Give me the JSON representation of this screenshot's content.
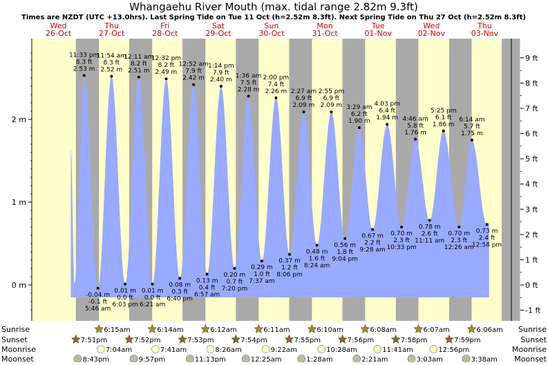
{
  "chart_data": {
    "type": "area",
    "title": "Whangaehu River Mouth (max. tidal range 2.82m 9.3ft)",
    "subtitle": "Times are NZDT (UTC +13.0hrs). Last Spring Tide on Tue 11 Oct (h=2.52m 8.3ft). Next Spring Tide on Thu 27 Oct (h=2.52m 8.3ft)",
    "days": [
      {
        "name": "Wed",
        "date": "26-Oct"
      },
      {
        "name": "Thu",
        "date": "27-Oct"
      },
      {
        "name": "Fri",
        "date": "28-Oct"
      },
      {
        "name": "Sat",
        "date": "29-Oct"
      },
      {
        "name": "Sun",
        "date": "30-Oct"
      },
      {
        "name": "Mon",
        "date": "31-Oct"
      },
      {
        "name": "Tue",
        "date": "01-Nov"
      },
      {
        "name": "Wed",
        "date": "02-Nov"
      },
      {
        "name": "Thu",
        "date": "03-Nov"
      }
    ],
    "y_left_ticks": [
      "0 m",
      "1 m",
      "2 m"
    ],
    "y_right_ticks": [
      "-1 ft",
      "0 ft",
      "1 ft",
      "2 ft",
      "3 ft",
      "4 ft",
      "5 ft",
      "6 ft",
      "7 ft",
      "8 ft",
      "9 ft"
    ],
    "ylim_m": [
      -0.3,
      2.85
    ],
    "tides": [
      {
        "type": "high",
        "time": "11:33 pm",
        "ft": "8.3 ft",
        "m": "2.53 m",
        "h": 2.53,
        "t": 23.55
      },
      {
        "type": "low",
        "time": "5:46 am",
        "ft": "-0.1 ft",
        "m": "-0.04 m",
        "h": -0.04,
        "t": 29.77
      },
      {
        "type": "high",
        "time": "11:54 am",
        "ft": "8.3 ft",
        "m": "2.52 m",
        "h": 2.52,
        "t": 35.9
      },
      {
        "type": "low",
        "time": "6:03 pm",
        "ft": "0.0 ft",
        "m": "0.01 m",
        "h": 0.01,
        "t": 42.05
      },
      {
        "type": "high",
        "time": "12:11 am",
        "ft": "8.2 ft",
        "m": "2.51 m",
        "h": 2.51,
        "t": 48.18
      },
      {
        "type": "low",
        "time": "6:21 am",
        "ft": "0.0 ft",
        "m": "0.01 m",
        "h": 0.01,
        "t": 54.35
      },
      {
        "type": "high",
        "time": "12:32 pm",
        "ft": "8.2 ft",
        "m": "2.49 m",
        "h": 2.49,
        "t": 60.53
      },
      {
        "type": "low",
        "time": "6:40 pm",
        "ft": "0.3 ft",
        "m": "0.08 m",
        "h": 0.08,
        "t": 66.67
      },
      {
        "type": "high",
        "time": "12:52 am",
        "ft": "7.9 ft",
        "m": "2.42 m",
        "h": 2.42,
        "t": 72.87
      },
      {
        "type": "low",
        "time": "6:57 am",
        "ft": "0.4 ft",
        "m": "0.13 m",
        "h": 0.13,
        "t": 78.95
      },
      {
        "type": "high",
        "time": "1:14 pm",
        "ft": "7.9 ft",
        "m": "2.40 m",
        "h": 2.4,
        "t": 85.23
      },
      {
        "type": "low",
        "time": "7:20 pm",
        "ft": "0.7 ft",
        "m": "0.20 m",
        "h": 0.2,
        "t": 91.33
      },
      {
        "type": "high",
        "time": "1:36 am",
        "ft": "7.5 ft",
        "m": "2.28 m",
        "h": 2.28,
        "t": 97.6
      },
      {
        "type": "low",
        "time": "7:37 am",
        "ft": "1.0 ft",
        "m": "0.29 m",
        "h": 0.29,
        "t": 103.62
      },
      {
        "type": "high",
        "time": "2:00 pm",
        "ft": "7.4 ft",
        "m": "2.26 m",
        "h": 2.26,
        "t": 110.0
      },
      {
        "type": "low",
        "time": "8:06 pm",
        "ft": "1.2 ft",
        "m": "0.37 m",
        "h": 0.37,
        "t": 116.1
      },
      {
        "type": "high",
        "time": "2:27 am",
        "ft": "6.9 ft",
        "m": "2.09 m",
        "h": 2.09,
        "t": 122.45
      },
      {
        "type": "low",
        "time": "8:24 am",
        "ft": "1.6 ft",
        "m": "0.48 m",
        "h": 0.48,
        "t": 128.4
      },
      {
        "type": "high",
        "time": "2:55 pm",
        "ft": "6.9 ft",
        "m": "2.09 m",
        "h": 2.09,
        "t": 134.92
      },
      {
        "type": "low",
        "time": "9:04 pm",
        "ft": "1.8 ft",
        "m": "0.56 m",
        "h": 0.56,
        "t": 141.07
      },
      {
        "type": "high",
        "time": "3:29 am",
        "ft": "6.2 ft",
        "m": "1.90 m",
        "h": 1.9,
        "t": 147.48
      },
      {
        "type": "low",
        "time": "9:28 am",
        "ft": "2.2 ft",
        "m": "0.67 m",
        "h": 0.67,
        "t": 153.47
      },
      {
        "type": "high",
        "time": "4:03 pm",
        "ft": "6.4 ft",
        "m": "1.94 m",
        "h": 1.94,
        "t": 160.05
      },
      {
        "type": "low",
        "time": "10:33 pm",
        "ft": "2.3 ft",
        "m": "0.70 m",
        "h": 0.7,
        "t": 166.55
      },
      {
        "type": "high",
        "time": "4:46 am",
        "ft": "5.8 ft",
        "m": "1.76 m",
        "h": 1.76,
        "t": 172.77
      },
      {
        "type": "low",
        "time": "11:11 am",
        "ft": "2.6 ft",
        "m": "0.78 m",
        "h": 0.78,
        "t": 179.18
      },
      {
        "type": "high",
        "time": "5:25 pm",
        "ft": "6.1 ft",
        "m": "1.86 m",
        "h": 1.86,
        "t": 185.42
      },
      {
        "type": "low",
        "time": "12:26 am",
        "ft": "2.3 ft",
        "m": "0.70 m",
        "h": 0.7,
        "t": 192.43
      },
      {
        "type": "high",
        "time": "6:14 am",
        "ft": "5.7 ft",
        "m": "1.75 m",
        "h": 1.75,
        "t": 198.23
      },
      {
        "type": "low",
        "time": "12:58 pm",
        "ft": "2.4 ft",
        "m": "0.73 m",
        "h": 0.73,
        "t": 204.97
      }
    ],
    "sun": [
      {
        "sunset": "7:51pm",
        "sunset_t": 19.85
      },
      {
        "sunrise": "6:15am",
        "sunrise_t": 30.25,
        "sunset": "7:52pm",
        "sunset_t": 43.87
      },
      {
        "sunrise": "6:14am",
        "sunrise_t": 54.23,
        "sunset": "7:53pm",
        "sunset_t": 67.88
      },
      {
        "sunrise": "6:12am",
        "sunrise_t": 78.2,
        "sunset": "7:54pm",
        "sunset_t": 91.9
      },
      {
        "sunrise": "6:11am",
        "sunrise_t": 102.18,
        "sunset": "7:55pm",
        "sunset_t": 115.92
      },
      {
        "sunrise": "6:10am",
        "sunrise_t": 126.17,
        "sunset": "7:56pm",
        "sunset_t": 139.93
      },
      {
        "sunrise": "6:08am",
        "sunrise_t": 150.13,
        "sunset": "7:58pm",
        "sunset_t": 163.97
      },
      {
        "sunrise": "6:07am",
        "sunrise_t": 174.12,
        "sunset": "7:59pm",
        "sunset_t": 187.98
      },
      {
        "sunrise": "6:06am",
        "sunrise_t": 198.1
      }
    ],
    "moonrise": [
      {
        "time": "7:04am",
        "t": 31.07
      },
      {
        "time": "7:41am",
        "t": 55.68
      },
      {
        "time": "8:26am",
        "t": 80.43
      },
      {
        "time": "9:22am",
        "t": 105.37
      },
      {
        "time": "10:28am",
        "t": 130.47
      },
      {
        "time": "11:41am",
        "t": 155.68
      },
      {
        "time": "12:56pm",
        "t": 180.93
      }
    ],
    "moonset": [
      {
        "time": "8:43pm",
        "t": 20.72
      },
      {
        "time": "9:57pm",
        "t": 45.95
      },
      {
        "time": "11:13pm",
        "t": 71.22
      },
      {
        "time": "12:25am",
        "t": 96.42
      },
      {
        "time": "1:28am",
        "t": 121.47
      },
      {
        "time": "2:21am",
        "t": 146.35
      },
      {
        "time": "3:03am",
        "t": 171.05
      },
      {
        "time": "3:38am",
        "t": 195.63
      }
    ],
    "row_labels": {
      "sunrise": "Sunrise",
      "sunset": "Sunset",
      "moonrise": "Moonrise",
      "moonset": "Moonset"
    },
    "colors": {
      "day_bg": "#ffffcc",
      "night_bg": "#a9a9a9",
      "tide_fill": "#99aaff",
      "day_label": "#cc0000",
      "sun_star": "#a68a2e",
      "set_star": "#8a6a2a",
      "moonrise_circle": "#ffffcc",
      "moonset_circle": "#bbbbaa"
    }
  }
}
